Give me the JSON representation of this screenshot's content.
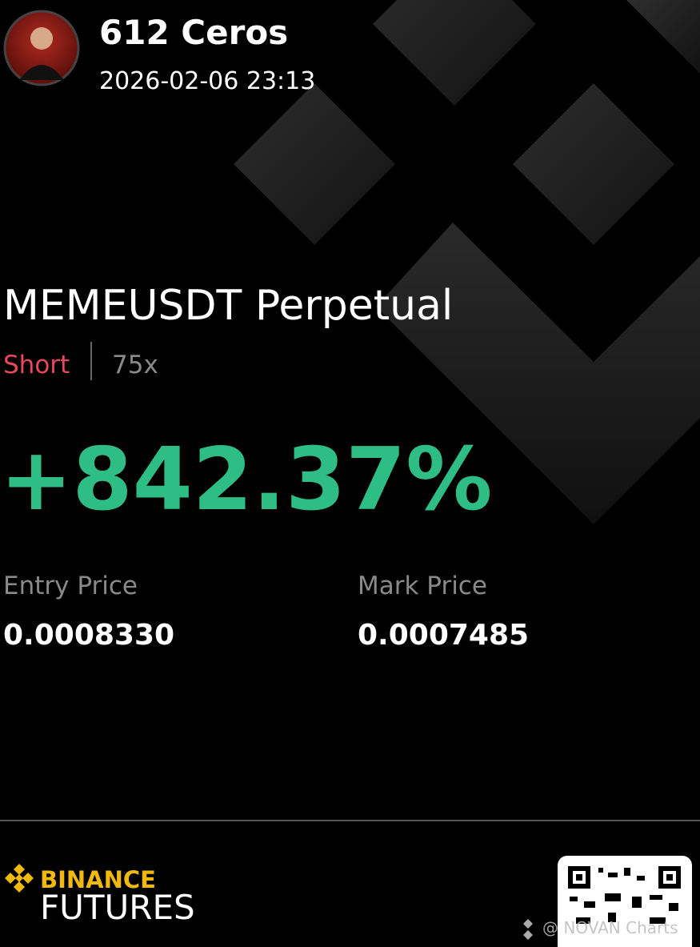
{
  "user": {
    "name": "612 Ceros",
    "timestamp": "2026-02-06 23:13"
  },
  "position": {
    "symbol": "MEMEUSDT Perpetual",
    "side": "Short",
    "leverage": "75x",
    "roi": "+842.37%"
  },
  "prices": [
    {
      "label": "Entry Price",
      "value": "0.0008330"
    },
    {
      "label": "Mark Price",
      "value": "0.0007485"
    }
  ],
  "footer": {
    "brand": "BINANCE",
    "product": "FUTURES",
    "watermark": "@ NOVAN Charts"
  }
}
